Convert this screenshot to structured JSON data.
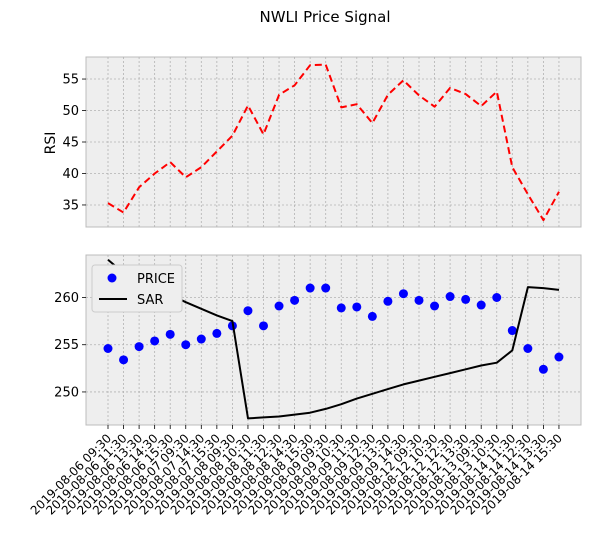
{
  "title": "NWLI Price Signal",
  "chart_data": [
    {
      "type": "line",
      "ylabel": "RSI",
      "xlabel": "",
      "ylim": [
        31.5,
        58.5
      ],
      "yticks": [
        35,
        40,
        45,
        50,
        55
      ],
      "grid": true,
      "series": [
        {
          "values": [
            35.3,
            33.8,
            37.8,
            40.0,
            41.8,
            39.4,
            41.0,
            43.5,
            46.0,
            50.8,
            46.2,
            52.5,
            54.0,
            57.2,
            57.3,
            50.5,
            51.0,
            48.0,
            52.5,
            54.8,
            52.4,
            50.6,
            53.6,
            52.6,
            50.7,
            53.0,
            41.0,
            36.7,
            32.6,
            37.1
          ],
          "color": "#ff0000",
          "line": "dashed"
        }
      ]
    },
    {
      "type": "scatter",
      "ylabel": "",
      "xlabel": "",
      "ylim": [
        246.5,
        264.5
      ],
      "yticks": [
        250,
        255,
        260
      ],
      "grid": true,
      "legend_position": "top-left",
      "x": [
        "2019-08-06 09:30",
        "2019-08-06 11:30",
        "2019-08-06 13:30",
        "2019-08-06 14:30",
        "2019-08-06 15:30",
        "2019-08-07 09:30",
        "2019-08-07 14:30",
        "2019-08-07 15:30",
        "2019-08-08 09:30",
        "2019-08-08 10:30",
        "2019-08-08 11:30",
        "2019-08-08 12:30",
        "2019-08-08 14:30",
        "2019-08-08 15:30",
        "2019-08-09 09:30",
        "2019-08-09 10:30",
        "2019-08-09 11:30",
        "2019-08-09 12:30",
        "2019-08-09 13:30",
        "2019-08-09 14:30",
        "2019-08-12 09:30",
        "2019-08-12 10:30",
        "2019-08-12 12:30",
        "2019-08-12 13:30",
        "2019-08-13 09:30",
        "2019-08-13 10:30",
        "2019-08-14 11:30",
        "2019-08-14 12:30",
        "2019-08-14 13:30",
        "2019-08-14 15:30"
      ],
      "series": [
        {
          "name": "PRICE",
          "values": [
            254.6,
            253.4,
            254.8,
            255.4,
            256.1,
            255.0,
            255.6,
            256.2,
            257.0,
            258.6,
            257.0,
            259.1,
            259.7,
            261.0,
            261.0,
            258.9,
            259.0,
            258.0,
            259.6,
            260.4,
            259.7,
            259.1,
            260.1,
            259.8,
            259.2,
            260.0,
            256.5,
            254.6,
            252.4,
            253.7
          ],
          "color": "#0000ff",
          "marker": "circle"
        },
        {
          "name": "SAR",
          "values": [
            264.0,
            262.6,
            261.8,
            261.0,
            260.3,
            259.5,
            258.8,
            258.1,
            257.5,
            247.2,
            247.3,
            247.4,
            247.6,
            247.8,
            248.2,
            248.7,
            249.3,
            249.8,
            250.3,
            250.8,
            251.2,
            251.6,
            252.0,
            252.4,
            252.8,
            253.1,
            254.4,
            261.1,
            261.0,
            260.8
          ],
          "color": "#000000",
          "line": "solid"
        }
      ]
    }
  ]
}
